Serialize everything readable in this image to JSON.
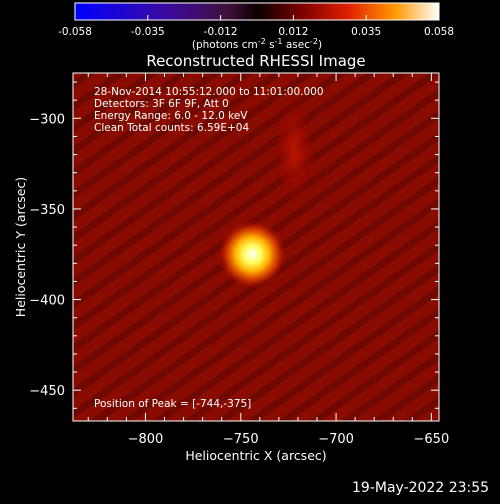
{
  "chart_data": {
    "type": "heatmap",
    "title": "Reconstructed RHESSI Image",
    "xlabel": "Heliocentric X (arcsec)",
    "ylabel": "Heliocentric Y (arcsec)",
    "xlim": [
      -838,
      -646
    ],
    "ylim": [
      -467,
      -275
    ],
    "xticks": [
      -800,
      -750,
      -700,
      -650
    ],
    "yticks": [
      -300,
      -350,
      -400,
      -450
    ],
    "colorbar": {
      "min": -0.058,
      "max": 0.058,
      "ticks": [
        "-0.058",
        "-0.035",
        "-0.012",
        "0.012",
        "0.035",
        "0.058"
      ],
      "unit_prefix": "(photons cm",
      "unit_exp1": "-2",
      "unit_mid": " s",
      "unit_exp2": "-1",
      "unit_mid2": " asec",
      "unit_exp3": "-2",
      "unit_suffix": ")"
    },
    "annotations": [
      "28-Nov-2014 10:55:12.000 to 11:01:00.000",
      "Detectors: 3F 6F 9F, Att 0",
      "Energy Range: 6.0 - 12.0 keV",
      "Clean    Total counts: 6.59E+04"
    ],
    "peak_label": "Position of Peak = [-744,-375]",
    "peak": {
      "x": -744,
      "y": -375,
      "value": 0.058
    },
    "secondary_source": {
      "x": -722,
      "y": -318,
      "value": 0.02
    },
    "background_level": 0.006
  },
  "footer": {
    "timestamp": "19-May-2022 23:55"
  }
}
